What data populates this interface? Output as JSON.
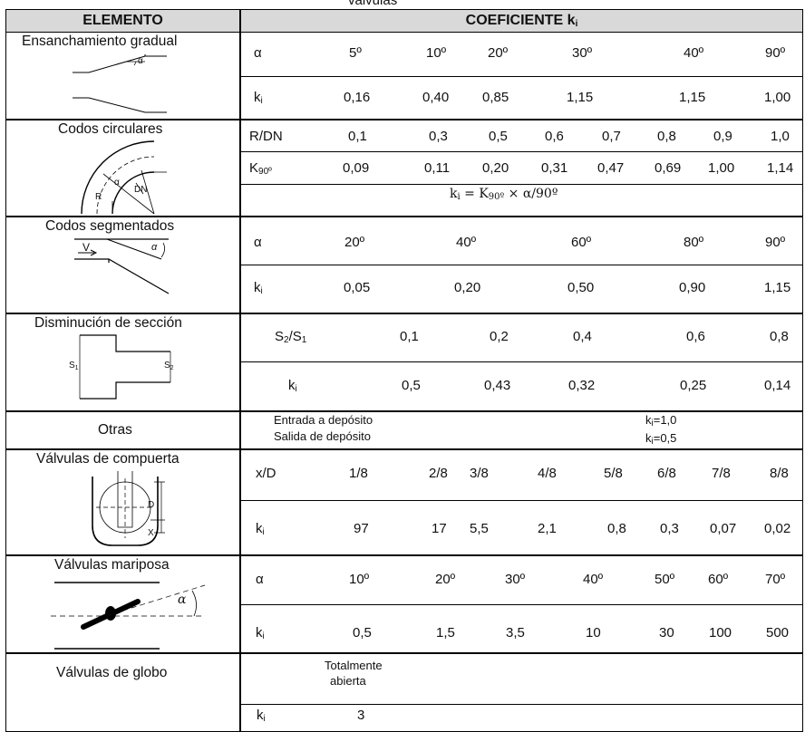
{
  "caption": "válvulas",
  "header": {
    "left": "ELEMENTO",
    "right": "COEFICIENTE k",
    "right_sub": "i"
  },
  "rows": {
    "ensanchamiento": {
      "title": "Ensanchamiento gradual",
      "angle_label": "α",
      "row1": {
        "label": "α",
        "values": [
          "5º",
          "10º",
          "20º",
          "30º",
          "40º",
          "90º"
        ]
      },
      "row2": {
        "label": "k",
        "label_sub": "i",
        "values": [
          "0,16",
          "0,40",
          "0,85",
          "1,15",
          "1,15",
          "1,00"
        ]
      }
    },
    "codos_circulares": {
      "title": "Codos circulares",
      "fig": {
        "r": "R",
        "alpha": "α",
        "dn": "DN"
      },
      "row1": {
        "label": "R/DN",
        "values": [
          "0,1",
          "0,3",
          "0,5",
          "0,6",
          "0,7",
          "0,8",
          "0,9",
          "1,0"
        ]
      },
      "row2": {
        "label": "K",
        "label_sub": "90º",
        "values": [
          "0,09",
          "0,11",
          "0,20",
          "0,31",
          "0,47",
          "0,69",
          "1,00",
          "1,14"
        ]
      },
      "formula": {
        "lhs": "k",
        "lhs_sub": "i",
        "eq": " = K",
        "k_sub": "90º",
        "rest": " × α/90º"
      }
    },
    "codos_segmentados": {
      "title": "Codos segmentados",
      "fig": {
        "v": "V",
        "alpha": "α"
      },
      "row1": {
        "label": "α",
        "values": [
          "20º",
          "40º",
          "60º",
          "80º",
          "90º"
        ]
      },
      "row2": {
        "label": "k",
        "label_sub": "i",
        "values": [
          "0,05",
          "0,20",
          "0,50",
          "0,90",
          "1,15"
        ]
      }
    },
    "disminucion": {
      "title": "Disminución de sección",
      "fig": {
        "s1": "S",
        "s1_sub": "1",
        "s2": "S",
        "s2_sub": "2"
      },
      "row1": {
        "label_a": "S",
        "sub_a": "2",
        "label_b": "/S",
        "sub_b": "1",
        "values": [
          "0,1",
          "0,2",
          "0,4",
          "0,6",
          "0,8"
        ]
      },
      "row2": {
        "label": "k",
        "label_sub": "i",
        "values": [
          "0,5",
          "0,43",
          "0,32",
          "0,25",
          "0,14"
        ]
      }
    },
    "otras": {
      "title": "Otras",
      "lines": [
        "Entrada a depósito",
        "Salida de depósito"
      ],
      "values": [
        {
          "k": "k",
          "sub": "i",
          "v": "=1,0"
        },
        {
          "k": "k",
          "sub": "i",
          "v": "=0,5"
        }
      ]
    },
    "compuerta": {
      "title": "Válvulas de compuerta",
      "fig": {
        "d": "D",
        "x": "X"
      },
      "row1": {
        "label": "x/D",
        "values": [
          "1/8",
          "2/8",
          "3/8",
          "4/8",
          "5/8",
          "6/8",
          "7/8",
          "8/8"
        ]
      },
      "row2": {
        "label": "k",
        "label_sub": "i",
        "values": [
          "97",
          "17",
          "5,5",
          "2,1",
          "0,8",
          "0,3",
          "0,07",
          "0,02"
        ]
      }
    },
    "mariposa": {
      "title": "Válvulas mariposa",
      "fig": {
        "alpha": "α"
      },
      "row1": {
        "label": "α",
        "values": [
          "10º",
          "20º",
          "30º",
          "40º",
          "50º",
          "60º",
          "70º"
        ]
      },
      "row2": {
        "label": "k",
        "label_sub": "i",
        "values": [
          "0,5",
          "1,5",
          "3,5",
          "10",
          "30",
          "100",
          "500"
        ]
      }
    },
    "globo": {
      "title": "Válvulas de globo",
      "heading_lines": [
        "Totalmente",
        "abierta"
      ],
      "row2": {
        "label": "k",
        "label_sub": "i",
        "value": "3"
      }
    }
  }
}
